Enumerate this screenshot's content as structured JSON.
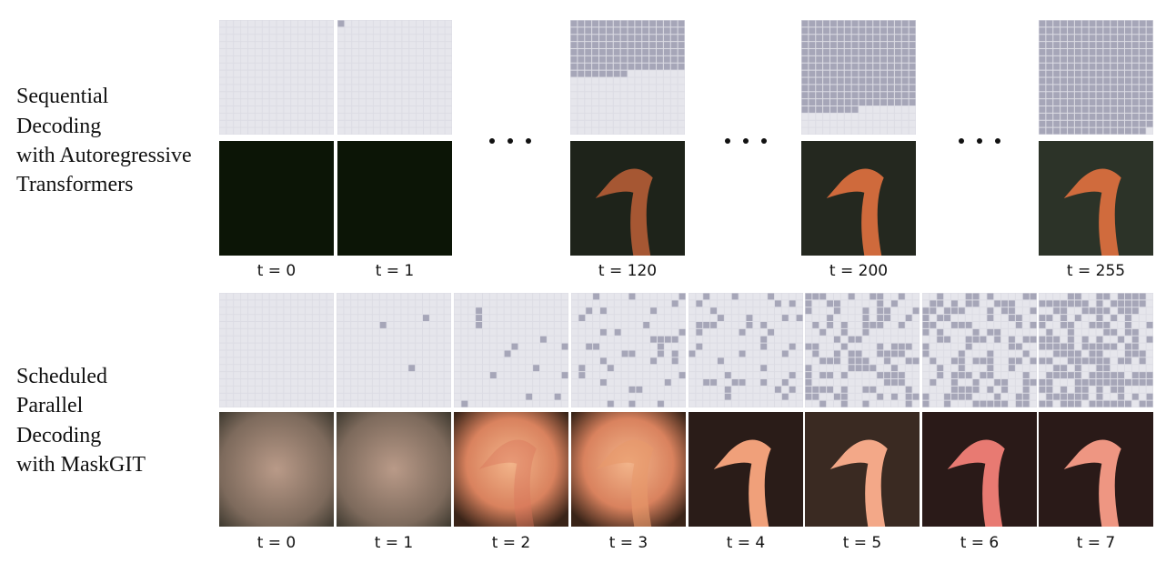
{
  "rows": [
    {
      "label": [
        "Sequential",
        "Decoding",
        "with Autoregressive",
        "Transformers"
      ],
      "steps": [
        "t = 0",
        "t = 1",
        "t = 120",
        "t = 200",
        "t = 255"
      ]
    },
    {
      "label": [
        "Scheduled",
        "Parallel",
        "Decoding",
        "with MaskGIT"
      ],
      "steps": [
        "t = 0",
        "t = 1",
        "t = 2",
        "t = 3",
        "t = 4",
        "t = 5",
        "t = 6",
        "t = 7"
      ]
    }
  ]
}
